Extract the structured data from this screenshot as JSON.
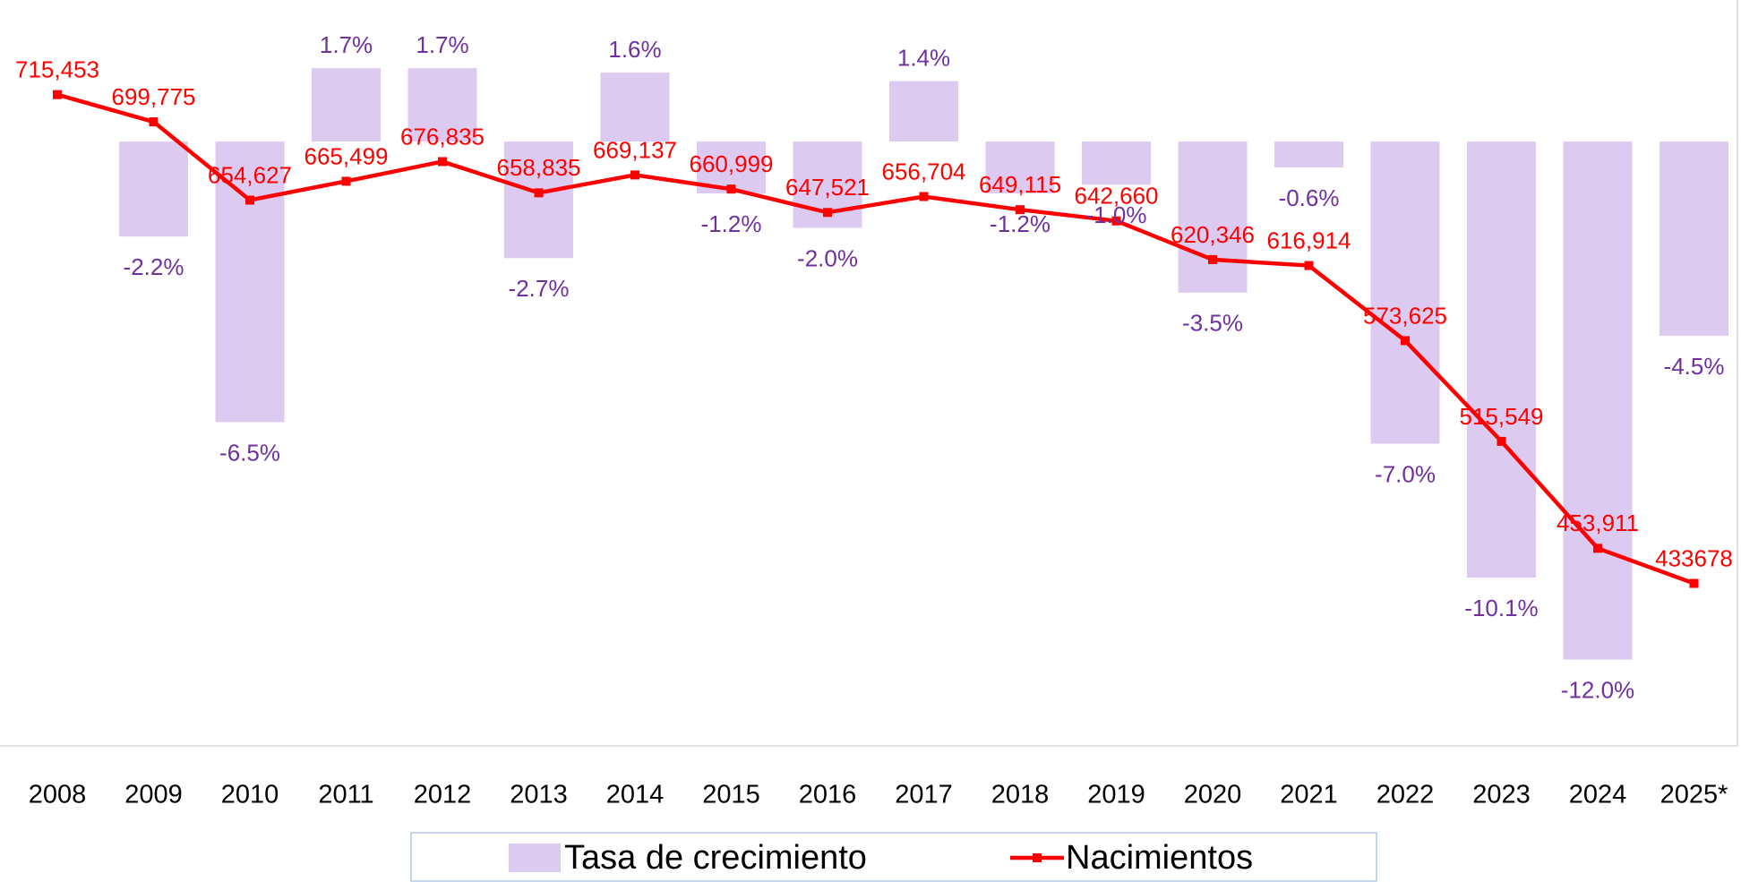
{
  "chart_data": {
    "type": "combo",
    "categories": [
      "2008",
      "2009",
      "2010",
      "2011",
      "2012",
      "2013",
      "2014",
      "2015",
      "2016",
      "2017",
      "2018",
      "2019",
      "2020",
      "2021",
      "2022",
      "2023",
      "2024",
      "2025*"
    ],
    "series": [
      {
        "name": "Tasa de crecimiento",
        "type": "bar",
        "color": "#dccaf0",
        "label_color": "#7030a0",
        "values": [
          null,
          -2.2,
          -6.5,
          1.7,
          1.7,
          -2.7,
          1.6,
          -1.2,
          -2.0,
          1.4,
          -1.2,
          -1.0,
          -3.5,
          -0.6,
          -7.0,
          -10.1,
          -12.0,
          -4.5
        ],
        "value_labels": [
          null,
          "-2.2%",
          "-6.5%",
          "1.7%",
          "1.7%",
          "-2.7%",
          "1.6%",
          "-1.2%",
          "-2.0%",
          "1.4%",
          "-1.2%",
          "-1.0%",
          "-3.5%",
          "-0.6%",
          "-7.0%",
          "-10.1%",
          "-12.0%",
          "-4.5%"
        ]
      },
      {
        "name": "Nacimientos",
        "type": "line",
        "color": "#ff0000",
        "axis": "y2",
        "values": [
          715453,
          699775,
          654627,
          665499,
          676835,
          658835,
          669137,
          660999,
          647521,
          656704,
          649115,
          642660,
          620346,
          616914,
          573625,
          515549,
          453911,
          433678
        ],
        "value_labels": [
          "715,453",
          "699,775",
          "654,627",
          "665,499",
          "676,835",
          "658,835",
          "669,137",
          "660,999",
          "647,521",
          "656,704",
          "649,115",
          "642,660",
          "620,346",
          "616,914",
          "573,625",
          "515,549",
          "453,911",
          "433678"
        ]
      }
    ],
    "ylim": [
      -14,
      3.28
    ],
    "y2lim": [
      340000,
      770000
    ],
    "legend": "bottom"
  }
}
